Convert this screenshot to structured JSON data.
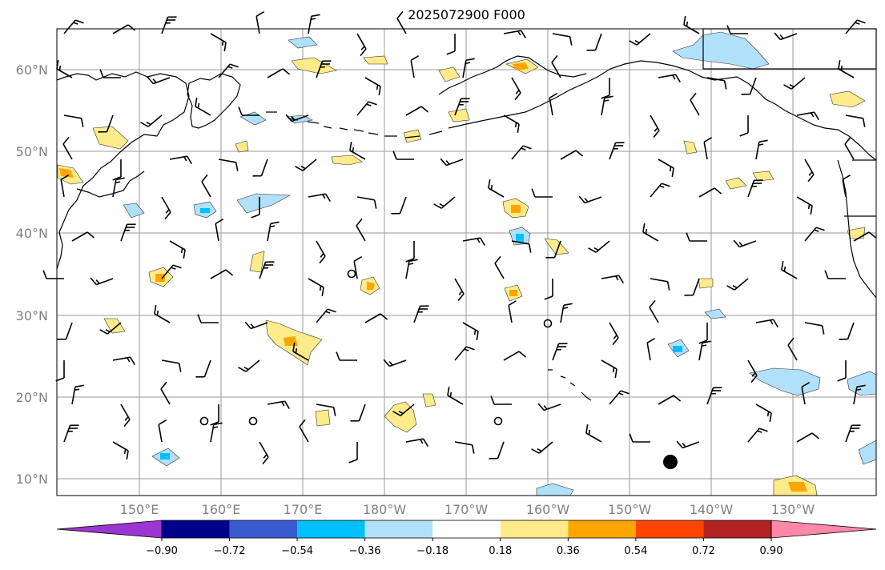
{
  "title": "2025072900 F000",
  "lat_labels": [
    "60°N",
    "50°N",
    "40°N",
    "30°N",
    "20°N",
    "10°N"
  ],
  "lon_labels": [
    "150°E",
    "160°E",
    "170°E",
    "180°W",
    "170°W",
    "160°W",
    "150°W",
    "140°W",
    "130°W"
  ],
  "colorbar": {
    "ticks": [
      "−0.90",
      "−0.72",
      "−0.54",
      "−0.36",
      "−0.18",
      "0.18",
      "0.36",
      "0.54",
      "0.72",
      "0.90"
    ],
    "colors": [
      "#9b36d3",
      "#00008c",
      "#3a5bd0",
      "#00bfff",
      "#b0e0fa",
      "#ffffff",
      "#ffeb8a",
      "#ffa500",
      "#ff4500",
      "#b22222",
      "#ff88aa"
    ]
  },
  "map": {
    "domain": "North Pacific",
    "lon_range": [
      "140°E",
      "120°W"
    ],
    "lat_range": [
      "8°N",
      "65°N"
    ],
    "grid": true,
    "features": [
      "coastlines",
      "wind barbs",
      "shaded contour field",
      "storm marker"
    ]
  }
}
